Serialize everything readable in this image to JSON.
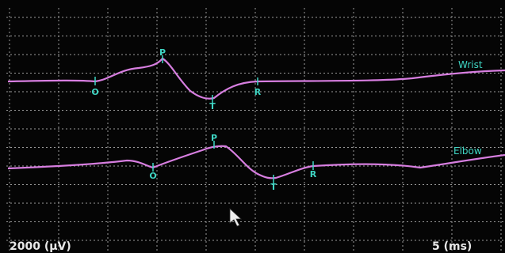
{
  "traces": [
    {
      "label": "Wrist",
      "markers": [
        "O",
        "P",
        "T",
        "R"
      ]
    },
    {
      "label": "Elbow",
      "markers": [
        "O",
        "P",
        "T",
        "R"
      ]
    }
  ],
  "scale": {
    "amplitude": "2000 (µV)",
    "time": "5 (ms)"
  }
}
